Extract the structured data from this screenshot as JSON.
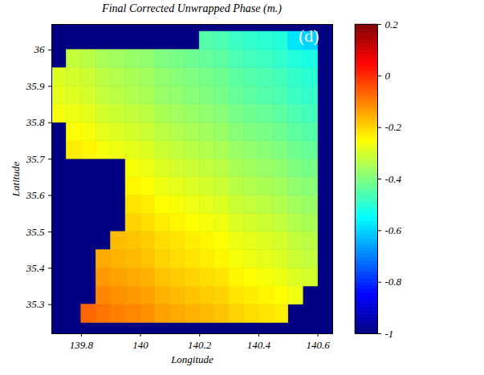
{
  "chart_data": {
    "type": "heatmap",
    "title": "Final Corrected Unwrapped Phase (m.)",
    "x_label": "Longitude",
    "y_label": "Latitude",
    "annotations": [
      "(d)"
    ],
    "xlim": [
      139.7,
      140.65
    ],
    "xticks": [
      139.8,
      140,
      140.2,
      140.4,
      140.6
    ],
    "ylim": [
      35.22,
      36.07
    ],
    "yticks": [
      35.3,
      35.4,
      35.5,
      35.6,
      35.7,
      35.8,
      35.9,
      36
    ],
    "x": [
      139.725,
      139.775,
      139.825,
      139.875,
      139.925,
      139.975,
      140.025,
      140.075,
      140.125,
      140.175,
      140.225,
      140.275,
      140.325,
      140.375,
      140.425,
      140.475,
      140.525,
      140.575
    ],
    "y": [
      35.275,
      35.325,
      35.375,
      35.425,
      35.475,
      35.525,
      35.575,
      35.625,
      35.675,
      35.725,
      35.775,
      35.825,
      35.875,
      35.925,
      35.975,
      36.025
    ],
    "values": [
      [
        null,
        null,
        -0.07,
        -0.09,
        -0.1,
        -0.11,
        -0.12,
        -0.14,
        -0.15,
        -0.16,
        -0.17,
        -0.18,
        -0.2,
        -0.21,
        -0.22,
        -0.23,
        null,
        null
      ],
      [
        null,
        null,
        null,
        -0.11,
        -0.12,
        -0.13,
        -0.14,
        -0.16,
        -0.17,
        -0.18,
        -0.19,
        -0.2,
        -0.22,
        -0.23,
        -0.24,
        -0.25,
        -0.27,
        null
      ],
      [
        null,
        null,
        null,
        -0.13,
        -0.14,
        -0.15,
        -0.16,
        -0.18,
        -0.19,
        -0.2,
        -0.21,
        -0.22,
        -0.24,
        -0.25,
        -0.26,
        -0.27,
        -0.29,
        -0.3
      ],
      [
        null,
        null,
        null,
        -0.15,
        -0.16,
        -0.17,
        -0.18,
        -0.2,
        -0.21,
        -0.22,
        -0.23,
        -0.24,
        -0.26,
        -0.27,
        -0.28,
        -0.29,
        -0.31,
        -0.32
      ],
      [
        null,
        null,
        null,
        null,
        -0.17,
        -0.18,
        -0.19,
        -0.21,
        -0.22,
        -0.23,
        -0.24,
        -0.25,
        -0.27,
        -0.28,
        -0.29,
        -0.3,
        -0.32,
        -0.33
      ],
      [
        null,
        null,
        null,
        null,
        null,
        -0.2,
        -0.21,
        -0.23,
        -0.24,
        -0.25,
        -0.26,
        -0.27,
        -0.29,
        -0.3,
        -0.31,
        -0.32,
        -0.34,
        -0.35
      ],
      [
        null,
        null,
        null,
        null,
        null,
        -0.22,
        -0.23,
        -0.25,
        -0.26,
        -0.27,
        -0.28,
        -0.29,
        -0.31,
        -0.32,
        -0.33,
        -0.34,
        -0.36,
        -0.37
      ],
      [
        null,
        null,
        null,
        null,
        null,
        -0.24,
        -0.25,
        -0.27,
        -0.28,
        -0.29,
        -0.3,
        -0.31,
        -0.33,
        -0.34,
        -0.35,
        -0.36,
        -0.38,
        -0.39
      ],
      [
        null,
        null,
        null,
        null,
        null,
        -0.26,
        -0.27,
        -0.29,
        -0.3,
        -0.31,
        -0.32,
        -0.33,
        -0.35,
        -0.36,
        -0.37,
        -0.38,
        -0.4,
        -0.41
      ],
      [
        null,
        -0.23,
        -0.24,
        -0.26,
        -0.27,
        -0.28,
        -0.29,
        -0.31,
        -0.32,
        -0.33,
        -0.34,
        -0.35,
        -0.37,
        -0.38,
        -0.39,
        -0.4,
        -0.42,
        -0.43
      ],
      [
        null,
        -0.25,
        -0.26,
        -0.28,
        -0.29,
        -0.3,
        -0.31,
        -0.33,
        -0.34,
        -0.35,
        -0.36,
        -0.37,
        -0.39,
        -0.4,
        -0.41,
        -0.42,
        -0.44,
        -0.45
      ],
      [
        -0.26,
        -0.27,
        -0.28,
        -0.3,
        -0.31,
        -0.32,
        -0.33,
        -0.35,
        -0.36,
        -0.37,
        -0.38,
        -0.39,
        -0.41,
        -0.42,
        -0.43,
        -0.44,
        -0.46,
        -0.47
      ],
      [
        -0.28,
        -0.29,
        -0.3,
        -0.32,
        -0.33,
        -0.34,
        -0.35,
        -0.37,
        -0.38,
        -0.39,
        -0.4,
        -0.41,
        -0.43,
        -0.44,
        -0.45,
        -0.46,
        -0.48,
        -0.49
      ],
      [
        -0.29,
        -0.3,
        -0.31,
        -0.33,
        -0.34,
        -0.35,
        -0.36,
        -0.38,
        -0.39,
        -0.4,
        -0.41,
        -0.42,
        -0.44,
        -0.45,
        -0.46,
        -0.47,
        -0.49,
        -0.5
      ],
      [
        null,
        -0.32,
        -0.33,
        -0.35,
        -0.36,
        -0.37,
        -0.38,
        -0.4,
        -0.41,
        -0.42,
        -0.43,
        -0.44,
        -0.46,
        -0.47,
        -0.48,
        -0.49,
        -0.51,
        -0.52
      ],
      [
        null,
        null,
        null,
        null,
        null,
        null,
        null,
        null,
        null,
        null,
        -0.45,
        -0.46,
        -0.48,
        -0.49,
        -0.5,
        -0.51,
        -0.58,
        -0.6
      ]
    ],
    "colorbar": {
      "range": [
        -1,
        0.2
      ],
      "ticks": [
        -1,
        -0.8,
        -0.6,
        -0.4,
        -0.2,
        0,
        0.2
      ]
    }
  }
}
